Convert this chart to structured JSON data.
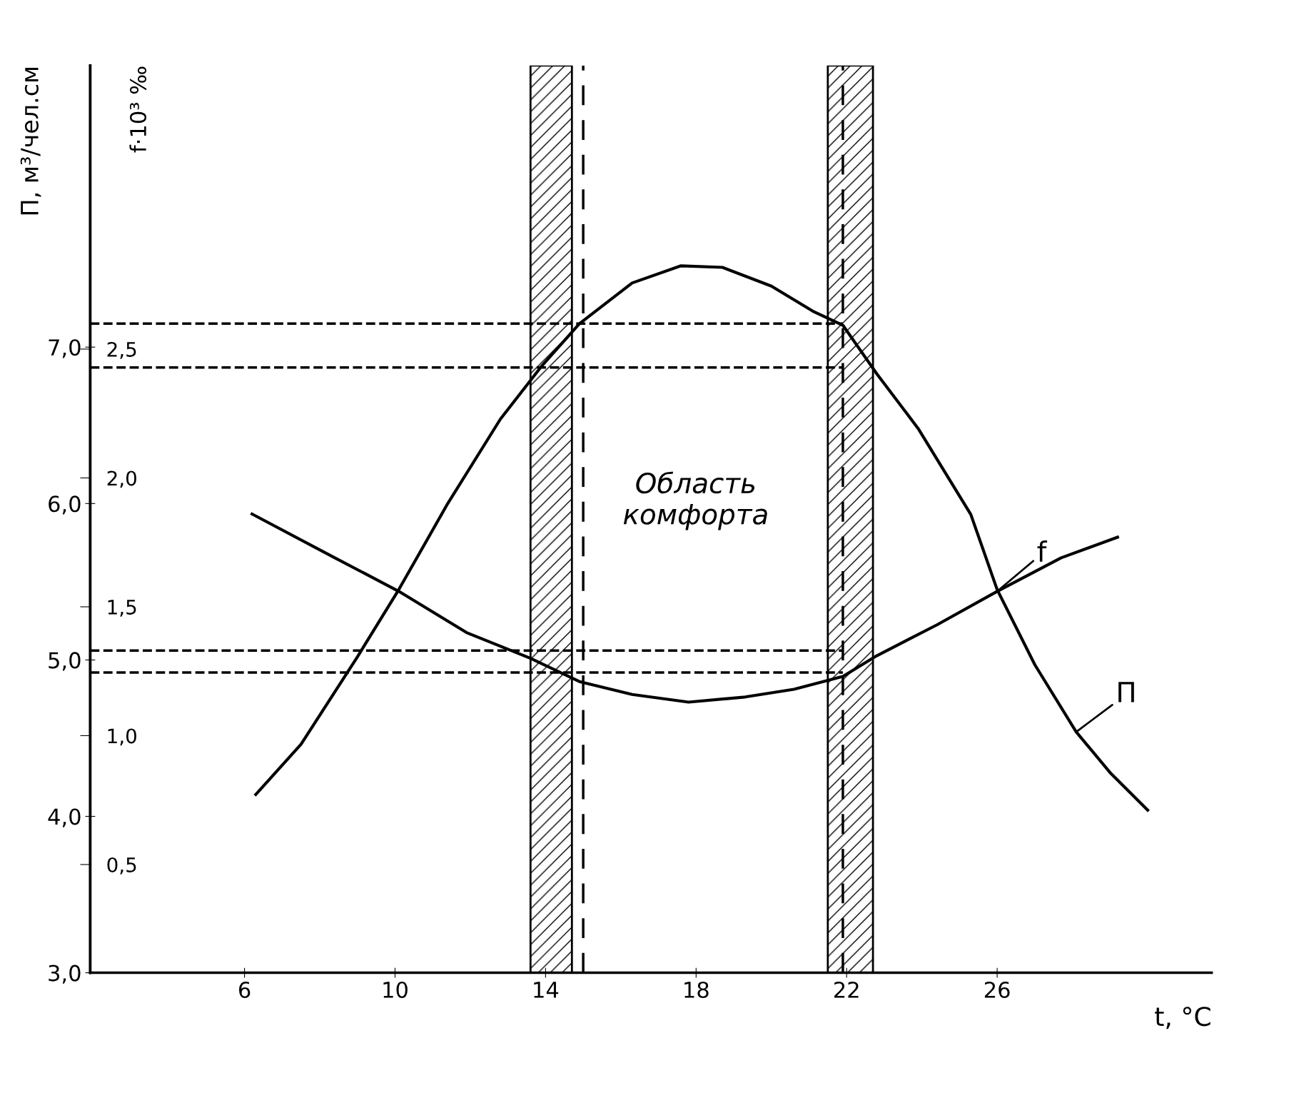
{
  "chart_data": {
    "type": "line",
    "xlabel": "t, °C",
    "ylabel": "П, м³/чел.см",
    "y2label": "f·10³ ‰",
    "xlim": [
      1.9,
      31.7
    ],
    "xticks": [
      6,
      10,
      14,
      18,
      22,
      26
    ],
    "ylim": [
      3.0,
      8.8
    ],
    "yticks": [
      {
        "value": 3,
        "label": "3,0"
      },
      {
        "value": 4,
        "label": "4,0"
      },
      {
        "value": 5,
        "label": "5,0"
      },
      {
        "value": 6,
        "label": "6,0"
      },
      {
        "value": 7,
        "label": "7,0"
      }
    ],
    "y2lim": [
      0.08,
      3.6
    ],
    "y2ticks": [
      {
        "value": 0.5,
        "label": "0,5"
      },
      {
        "value": 1.0,
        "label": "1,0"
      },
      {
        "value": 1.5,
        "label": "1,5"
      },
      {
        "value": 2.0,
        "label": "2,0"
      },
      {
        "value": 2.5,
        "label": "2,5"
      }
    ],
    "series": [
      {
        "name": "П",
        "color": "#000000",
        "x": [
          6.3,
          7.5,
          9.0,
          10.1,
          11.4,
          12.8,
          13.9,
          14.9,
          16.3,
          17.6,
          18.7,
          20.0,
          21.1,
          21.9,
          22.8,
          23.9,
          25.3,
          26.0,
          27.0,
          28.1,
          29.0,
          30.0
        ],
        "values": [
          4.14,
          4.46,
          5.02,
          5.45,
          6.0,
          6.54,
          6.88,
          7.15,
          7.41,
          7.52,
          7.51,
          7.39,
          7.23,
          7.14,
          6.83,
          6.48,
          5.93,
          5.45,
          4.97,
          4.54,
          4.28,
          4.04
        ]
      },
      {
        "name": "f",
        "color": "#000000",
        "axis": "y2",
        "x": [
          6.2,
          8.4,
          10.1,
          11.9,
          13.6,
          14.9,
          16.3,
          17.8,
          19.3,
          20.6,
          21.9,
          22.8,
          24.4,
          26.0,
          27.7,
          29.2
        ],
        "values": [
          1.86,
          1.69,
          1.56,
          1.4,
          1.3,
          1.21,
          1.16,
          1.13,
          1.15,
          1.18,
          1.23,
          1.31,
          1.43,
          1.56,
          1.69,
          1.77
        ]
      }
    ],
    "ref_lines": [
      {
        "axis": "x",
        "value": 15.0,
        "line_style": "dashed",
        "color": "#000000"
      },
      {
        "axis": "x",
        "value": 21.9,
        "line_style": "dashed",
        "color": "#000000"
      },
      {
        "axis": "y",
        "value": 7.15,
        "line_style": "dashed",
        "color": "#000000"
      },
      {
        "axis": "y",
        "value": 6.87,
        "line_style": "dashed",
        "color": "#000000"
      },
      {
        "axis": "y",
        "value": 5.06,
        "line_style": "dashed",
        "color": "#000000"
      },
      {
        "axis": "y",
        "value": 4.92,
        "line_style": "dashed",
        "color": "#000000"
      }
    ],
    "bands": [
      {
        "axis": "x",
        "from": 13.6,
        "to": 14.7,
        "color": "#000000"
      },
      {
        "axis": "x",
        "from": 21.5,
        "to": 22.7,
        "color": "#000000"
      }
    ],
    "annotations": [
      "Область\nкомфорта"
    ],
    "grid": false,
    "legend": false,
    "line_style": "solid",
    "marker": "none"
  }
}
